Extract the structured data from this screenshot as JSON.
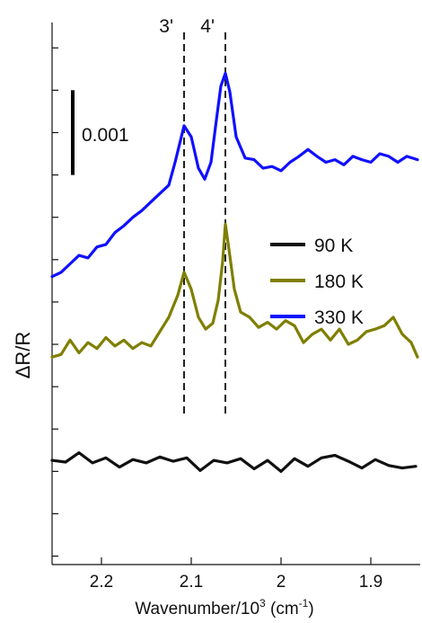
{
  "chart_data": {
    "type": "line",
    "xlabel": "Wavenumber/10",
    "xlabel_sup": "3",
    "xlabel_unit": " (cm",
    "xlabel_unit_sup": "-1",
    "xlabel_close": ")",
    "ylabel": "ΔR/R",
    "x_reversed": true,
    "xlim": [
      2.255,
      1.845
    ],
    "x_ticks": [
      2.2,
      2.1,
      2.0,
      1.9
    ],
    "x_tick_labels": [
      "2.2",
      "2.1",
      "2",
      "1.9"
    ],
    "ylim": [
      -0.0012,
      0.0052
    ],
    "y_tick_values": [
      -0.0011,
      -0.0006,
      -0.0001,
      0.0004,
      0.0009,
      0.0014,
      0.0019,
      0.0024,
      0.0029,
      0.0034,
      0.0039,
      0.0044,
      0.0049
    ],
    "grid": false,
    "legend_position": "middle-right",
    "scale_bar": {
      "label": "0.001",
      "value": 0.001,
      "y_bottom": 0.0034
    },
    "reference_lines": [
      {
        "label": "3'",
        "x": 2.108
      },
      {
        "label": "4'",
        "x": 2.062
      }
    ],
    "series": [
      {
        "name": "90 K",
        "color": "#111111",
        "x": [
          2.255,
          2.24,
          2.225,
          2.21,
          2.195,
          2.18,
          2.165,
          2.15,
          2.135,
          2.12,
          2.105,
          2.09,
          2.075,
          2.06,
          2.045,
          2.03,
          2.015,
          2.0,
          1.985,
          1.97,
          1.955,
          1.94,
          1.925,
          1.91,
          1.895,
          1.88,
          1.865,
          1.85
        ],
        "y": [
          3e-05,
          1e-05,
          0.00012,
          0.0,
          6e-05,
          -5e-05,
          4e-05,
          0.0,
          7e-05,
          2e-05,
          6e-05,
          -9e-05,
          3e-05,
          0.0,
          5e-05,
          -7e-05,
          3e-05,
          -0.0001,
          5e-05,
          -4e-05,
          6e-05,
          9e-05,
          2e-05,
          -6e-05,
          4e-05,
          -3e-05,
          -6e-05,
          -4e-05
        ]
      },
      {
        "name": "180 K",
        "color": "#7f7f00",
        "x": [
          2.255,
          2.245,
          2.235,
          2.225,
          2.215,
          2.205,
          2.195,
          2.185,
          2.175,
          2.165,
          2.155,
          2.145,
          2.135,
          2.125,
          2.115,
          2.108,
          2.1,
          2.092,
          2.084,
          2.076,
          2.07,
          2.065,
          2.062,
          2.058,
          2.052,
          2.045,
          2.035,
          2.025,
          2.015,
          2.005,
          1.995,
          1.985,
          1.975,
          1.965,
          1.955,
          1.945,
          1.935,
          1.925,
          1.915,
          1.905,
          1.895,
          1.885,
          1.875,
          1.865,
          1.855,
          1.848
        ],
        "y": [
          0.00125,
          0.00128,
          0.00145,
          0.0013,
          0.00142,
          0.00135,
          0.00148,
          0.00138,
          0.00145,
          0.00135,
          0.00142,
          0.00138,
          0.00155,
          0.00172,
          0.00198,
          0.00225,
          0.00205,
          0.00172,
          0.00158,
          0.00165,
          0.00192,
          0.00238,
          0.00282,
          0.00252,
          0.00205,
          0.00178,
          0.00172,
          0.0016,
          0.00166,
          0.00158,
          0.00168,
          0.00162,
          0.00142,
          0.00152,
          0.00158,
          0.00145,
          0.00158,
          0.0014,
          0.00145,
          0.00155,
          0.00158,
          0.00162,
          0.00172,
          0.00152,
          0.00142,
          0.00125
        ]
      },
      {
        "name": "330 K",
        "color": "#1010ff",
        "x": [
          2.255,
          2.245,
          2.235,
          2.225,
          2.215,
          2.205,
          2.195,
          2.185,
          2.175,
          2.165,
          2.155,
          2.145,
          2.135,
          2.125,
          2.118,
          2.108,
          2.1,
          2.092,
          2.085,
          2.078,
          2.072,
          2.067,
          2.062,
          2.057,
          2.05,
          2.04,
          2.03,
          2.02,
          2.01,
          2.0,
          1.99,
          1.98,
          1.97,
          1.96,
          1.95,
          1.94,
          1.93,
          1.92,
          1.91,
          1.9,
          1.89,
          1.88,
          1.87,
          1.86,
          1.848
        ],
        "y": [
          0.0022,
          0.00225,
          0.00235,
          0.00245,
          0.00242,
          0.00255,
          0.00258,
          0.00272,
          0.0028,
          0.0029,
          0.00298,
          0.00308,
          0.00318,
          0.00328,
          0.00355,
          0.00398,
          0.00385,
          0.00348,
          0.00335,
          0.00355,
          0.00405,
          0.00445,
          0.0046,
          0.00438,
          0.00385,
          0.0036,
          0.00358,
          0.00348,
          0.0035,
          0.00345,
          0.00355,
          0.00362,
          0.0037,
          0.00362,
          0.00355,
          0.00358,
          0.00352,
          0.00362,
          0.00358,
          0.00355,
          0.00365,
          0.00362,
          0.00355,
          0.00362,
          0.00358
        ]
      }
    ]
  }
}
